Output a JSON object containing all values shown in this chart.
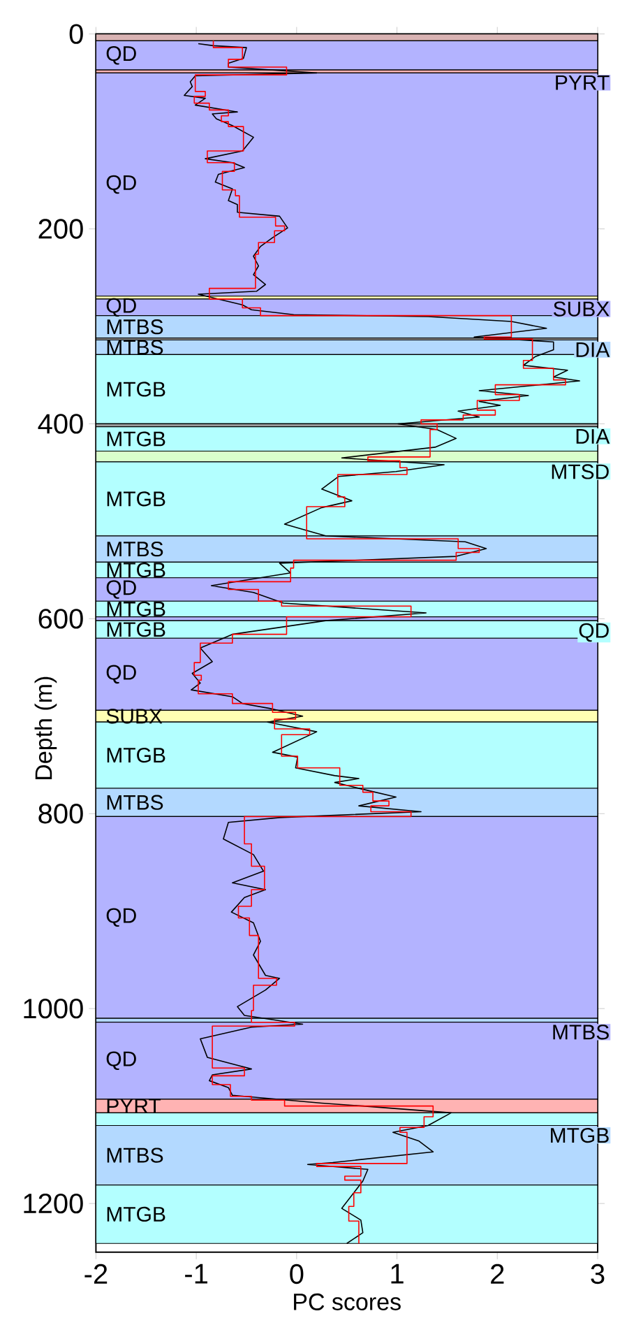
{
  "chart_data": {
    "type": "line",
    "xlabel": "PC scores",
    "ylabel": "Depth (m)",
    "xlim": [
      -2,
      3
    ],
    "ylim": [
      1250,
      0
    ],
    "xticks": [
      -2,
      -1,
      0,
      1,
      2,
      3
    ],
    "yticks": [
      0,
      200,
      400,
      600,
      800,
      1000,
      1200
    ],
    "series": [
      {
        "color": "#000000",
        "x": [
          -0.98,
          -0.83,
          -0.5,
          -0.53,
          -0.68,
          -0.68,
          0.2,
          -1.01,
          -1.06,
          -1.04,
          -1.12,
          -0.91,
          -1.01,
          -0.59,
          -0.84,
          -0.8,
          -0.64,
          -0.43,
          -0.54,
          -0.91,
          -0.64,
          -0.52,
          -0.78,
          -0.81,
          -0.64,
          -0.68,
          -0.59,
          -0.59,
          -0.17,
          -0.09,
          -0.24,
          -0.36,
          -0.43,
          -0.38,
          -0.43,
          -0.31,
          -0.4,
          -0.98,
          -0.78,
          -0.54,
          -0.45,
          -0.03,
          1.31,
          2.14,
          2.49,
          1.77,
          2.56,
          2.56,
          2.38,
          2.26,
          2.7,
          2.56,
          2.82,
          1.82,
          2.31,
          1.82,
          2.03,
          1.61,
          1.82,
          1.01,
          1.4,
          1.59,
          1.38,
          0.45,
          1.47,
          0.99,
          0.42,
          0.25,
          0.55,
          0.25,
          -0.12,
          0.29,
          1.68,
          1.89,
          1.59,
          -0.17,
          -0.06,
          -0.85,
          -0.43,
          -0.13,
          1.29,
          0.29,
          -0.64,
          -0.96,
          -0.84,
          -1.04,
          -0.96,
          -1.05,
          -0.64,
          -0.54,
          -0.27,
          0.06,
          -0.29,
          0.2,
          -0.24,
          0.01,
          -0.01,
          0.38,
          0.62,
          0.38,
          0.66,
          0.99,
          0.62,
          1.24,
          -0.17,
          -0.68,
          -0.73,
          -0.43,
          -0.33,
          -0.64,
          -0.31,
          -0.52,
          -0.65,
          -0.43,
          -0.36,
          -0.43,
          -0.31,
          -0.17,
          -0.31,
          -0.59,
          -0.52,
          0.06,
          -0.45,
          -0.96,
          -0.89,
          -0.45,
          -0.84,
          -0.87,
          -0.68,
          -0.64,
          0.25,
          0.66,
          1.54,
          1.31,
          0.96,
          1.22,
          1.36,
          0.36,
          0.11,
          0.71,
          0.66,
          0.45,
          0.64,
          0.66,
          0.5
        ],
        "values": [
          10,
          12,
          14,
          25,
          30,
          34,
          40,
          43,
          49,
          54,
          63,
          66,
          73,
          80,
          82,
          87,
          94,
          106,
          120,
          128,
          132,
          137,
          144,
          152,
          159,
          171,
          175,
          183,
          187,
          199,
          209,
          218,
          228,
          238,
          247,
          257,
          264,
          267,
          272,
          278,
          283,
          288,
          290,
          295,
          302,
          311,
          316,
          324,
          331,
          340,
          345,
          352,
          356,
          366,
          371,
          377,
          381,
          387,
          393,
          400,
          406,
          415,
          424,
          435,
          442,
          449,
          454,
          467,
          479,
          486,
          503,
          515,
          521,
          528,
          536,
          543,
          553,
          566,
          573,
          584,
          594,
          602,
          616,
          630,
          644,
          656,
          666,
          673,
          680,
          687,
          692,
          700,
          706,
          716,
          737,
          742,
          753,
          761,
          764,
          768,
          775,
          783,
          792,
          798,
          804,
          809,
          826,
          842,
          859,
          871,
          878,
          886,
          901,
          912,
          931,
          945,
          966,
          969,
          981,
          998,
          1007,
          1016,
          1019,
          1031,
          1050,
          1062,
          1068,
          1074,
          1081,
          1089,
          1097,
          1100,
          1107,
          1120,
          1127,
          1136,
          1147,
          1158,
          1160,
          1165,
          1177,
          1205,
          1217,
          1230,
          1241
        ]
      },
      {
        "color": "#ff0000",
        "x": [
          -0.83,
          -0.83,
          -0.54,
          -0.54,
          -0.68,
          -0.68,
          -0.1,
          -0.1,
          -1.01,
          -1.01,
          -0.91,
          -0.91,
          -1.02,
          -1.02,
          -0.87,
          -0.87,
          -0.68,
          -0.68,
          -0.75,
          -0.75,
          -0.68,
          -0.68,
          -0.53,
          -0.53,
          -0.89,
          -0.89,
          -0.62,
          -0.62,
          -0.74,
          -0.74,
          -0.61,
          -0.61,
          -0.57,
          -0.57,
          -0.21,
          -0.21,
          -0.12,
          -0.12,
          -0.22,
          -0.22,
          -0.38,
          -0.38,
          -0.41,
          -0.41,
          -0.87,
          -0.87,
          -0.54,
          -0.54,
          -0.36,
          -0.36,
          2.14,
          2.14,
          1.87,
          1.87,
          2.35,
          2.35,
          2.26,
          2.26,
          2.56,
          2.56,
          2.68,
          2.68,
          1.98,
          1.98,
          2.22,
          2.22,
          1.8,
          1.8,
          1.98,
          1.98,
          1.66,
          1.66,
          1.24,
          1.24,
          1.4,
          1.4,
          1.33,
          1.33,
          0.71,
          0.71,
          1.03,
          1.03,
          1.1,
          1.1,
          0.41,
          0.41,
          0.48,
          0.48,
          0.1,
          0.1,
          1.61,
          1.61,
          1.82,
          1.82,
          1.59,
          1.59,
          -0.03,
          -0.03,
          -0.06,
          -0.06,
          -0.68,
          -0.68,
          -0.38,
          -0.38,
          -0.15,
          -0.15,
          1.14,
          1.14,
          -0.1,
          -0.1,
          -0.64,
          -0.64,
          -0.96,
          -0.96,
          -1.02,
          -1.02,
          -0.95,
          -0.95,
          -0.98,
          -0.98,
          -0.64,
          -0.64,
          -0.24,
          -0.24,
          -0.01,
          -0.01,
          -0.22,
          -0.22,
          0.13,
          0.13,
          -0.15,
          -0.15,
          0.01,
          0.01,
          0.43,
          0.43,
          0.66,
          0.66,
          0.76,
          0.76,
          0.92,
          0.92,
          0.74,
          0.74,
          1.14,
          1.14,
          -0.52,
          -0.52,
          -0.45,
          -0.45,
          -0.32,
          -0.32,
          -0.45,
          -0.45,
          -0.58,
          -0.58,
          -0.47,
          -0.47,
          -0.38,
          -0.38,
          -0.2,
          -0.2,
          -0.43,
          -0.43,
          -0.45,
          -0.45,
          -0.02,
          -0.02,
          -0.84,
          -0.84,
          -0.52,
          -0.52,
          -0.84,
          -0.84,
          -0.66,
          -0.66,
          -0.45,
          -0.45,
          -0.12,
          -0.12,
          1.36,
          1.36,
          1.27,
          1.27,
          1.03,
          1.03,
          1.1,
          1.1,
          0.2,
          0.2,
          0.64,
          0.64,
          0.48,
          0.48,
          0.64,
          0.64,
          0.57,
          0.57,
          0.52,
          0.52,
          0.62,
          0.62
        ],
        "values": [
          7,
          14,
          14,
          26,
          26,
          34,
          34,
          42,
          42,
          59,
          59,
          64,
          64,
          71,
          71,
          78,
          78,
          84,
          84,
          90,
          90,
          95,
          95,
          120,
          120,
          132,
          132,
          141,
          141,
          160,
          160,
          166,
          166,
          188,
          188,
          197,
          197,
          202,
          202,
          214,
          214,
          226,
          226,
          261,
          261,
          272,
          272,
          281,
          281,
          289,
          289,
          311,
          311,
          313,
          313,
          335,
          335,
          343,
          343,
          355,
          355,
          360,
          360,
          370,
          370,
          376,
          376,
          386,
          386,
          391,
          391,
          396,
          396,
          400,
          400,
          406,
          406,
          434,
          434,
          438,
          438,
          445,
          445,
          452,
          452,
          475,
          475,
          485,
          485,
          518,
          518,
          528,
          528,
          532,
          532,
          540,
          540,
          548,
          548,
          562,
          562,
          570,
          570,
          582,
          582,
          587,
          587,
          598,
          598,
          616,
          616,
          625,
          625,
          645,
          645,
          658,
          658,
          663,
          663,
          677,
          677,
          687,
          687,
          696,
          696,
          703,
          703,
          713,
          713,
          719,
          719,
          741,
          741,
          753,
          753,
          771,
          771,
          778,
          778,
          787,
          787,
          792,
          792,
          798,
          798,
          803,
          803,
          831,
          831,
          854,
          854,
          878,
          878,
          895,
          895,
          907,
          907,
          925,
          925,
          969,
          969,
          976,
          976,
          1002,
          1002,
          1014,
          1014,
          1018,
          1018,
          1061,
          1061,
          1069,
          1069,
          1078,
          1078,
          1090,
          1090,
          1094,
          1094,
          1100,
          1100,
          1111,
          1111,
          1122,
          1122,
          1127,
          1127,
          1159,
          1159,
          1162,
          1162,
          1172,
          1172,
          1176,
          1176,
          1189,
          1189,
          1203,
          1203,
          1218,
          1218,
          1241
        ]
      }
    ],
    "bands": [
      {
        "axis": "y",
        "from": 0,
        "to": 7,
        "color": "#d9b3b3"
      },
      {
        "axis": "y",
        "from": 7,
        "to": 37,
        "label": "QD",
        "color": "#b3b3ff"
      },
      {
        "axis": "y",
        "from": 37,
        "to": 40,
        "label": "PYRT",
        "color": "#ffb3b3"
      },
      {
        "axis": "y",
        "from": 40,
        "to": 269,
        "label": "QD",
        "color": "#b3b3ff"
      },
      {
        "axis": "y",
        "from": 269,
        "to": 272,
        "label": "SUBX",
        "color": "#ffffb3"
      },
      {
        "axis": "y",
        "from": 272,
        "to": 289,
        "label": "QD",
        "color": "#b3b3ff"
      },
      {
        "axis": "y",
        "from": 289,
        "to": 312,
        "label": "MTBS",
        "color": "#b3d9ff"
      },
      {
        "axis": "y",
        "from": 312,
        "to": 314,
        "label": "DIA",
        "color": "#999999"
      },
      {
        "axis": "y",
        "from": 314,
        "to": 329,
        "label": "MTBS",
        "color": "#b3d9ff"
      },
      {
        "axis": "y",
        "from": 329,
        "to": 400,
        "label": "MTGB",
        "color": "#b3ffff"
      },
      {
        "axis": "y",
        "from": 400,
        "to": 403,
        "label": "DIA",
        "color": "#999999"
      },
      {
        "axis": "y",
        "from": 403,
        "to": 428,
        "label": "MTGB",
        "color": "#b3ffff"
      },
      {
        "axis": "y",
        "from": 428,
        "to": 439,
        "label": "MTSD",
        "color": "#d9ffcc"
      },
      {
        "axis": "y",
        "from": 439,
        "to": 515,
        "label": "MTGB",
        "color": "#b3ffff"
      },
      {
        "axis": "y",
        "from": 515,
        "to": 542,
        "label": "MTBS",
        "color": "#b3d9ff"
      },
      {
        "axis": "y",
        "from": 542,
        "to": 558,
        "label": "MTGB",
        "color": "#b3ffff"
      },
      {
        "axis": "y",
        "from": 558,
        "to": 582,
        "label": "QD",
        "color": "#b3b3ff"
      },
      {
        "axis": "y",
        "from": 582,
        "to": 598,
        "label": "MTGB",
        "color": "#b3ffff"
      },
      {
        "axis": "y",
        "from": 598,
        "to": 602,
        "label": "QD",
        "color": "#b3b3ff"
      },
      {
        "axis": "y",
        "from": 602,
        "to": 620,
        "label": "MTGB",
        "color": "#b3ffff"
      },
      {
        "axis": "y",
        "from": 620,
        "to": 694,
        "label": "QD",
        "color": "#b3b3ff"
      },
      {
        "axis": "y",
        "from": 694,
        "to": 706,
        "label": "SUBX",
        "color": "#ffffb3"
      },
      {
        "axis": "y",
        "from": 706,
        "to": 774,
        "label": "MTGB",
        "color": "#b3ffff"
      },
      {
        "axis": "y",
        "from": 774,
        "to": 803,
        "label": "MTBS",
        "color": "#b3d9ff"
      },
      {
        "axis": "y",
        "from": 803,
        "to": 1010,
        "label": "QD",
        "color": "#b3b3ff"
      },
      {
        "axis": "y",
        "from": 1010,
        "to": 1014,
        "label": "MTBS",
        "color": "#b3d9ff"
      },
      {
        "axis": "y",
        "from": 1014,
        "to": 1093,
        "label": "QD",
        "color": "#b3b3ff"
      },
      {
        "axis": "y",
        "from": 1093,
        "to": 1107,
        "label": "PYRT",
        "color": "#ffb3b3"
      },
      {
        "axis": "y",
        "from": 1107,
        "to": 1120,
        "label": "MTGB",
        "color": "#b3ffff"
      },
      {
        "axis": "y",
        "from": 1120,
        "to": 1181,
        "label": "MTBS",
        "color": "#b3d9ff"
      },
      {
        "axis": "y",
        "from": 1181,
        "to": 1241,
        "label": "MTGB",
        "color": "#b3ffff"
      }
    ]
  }
}
